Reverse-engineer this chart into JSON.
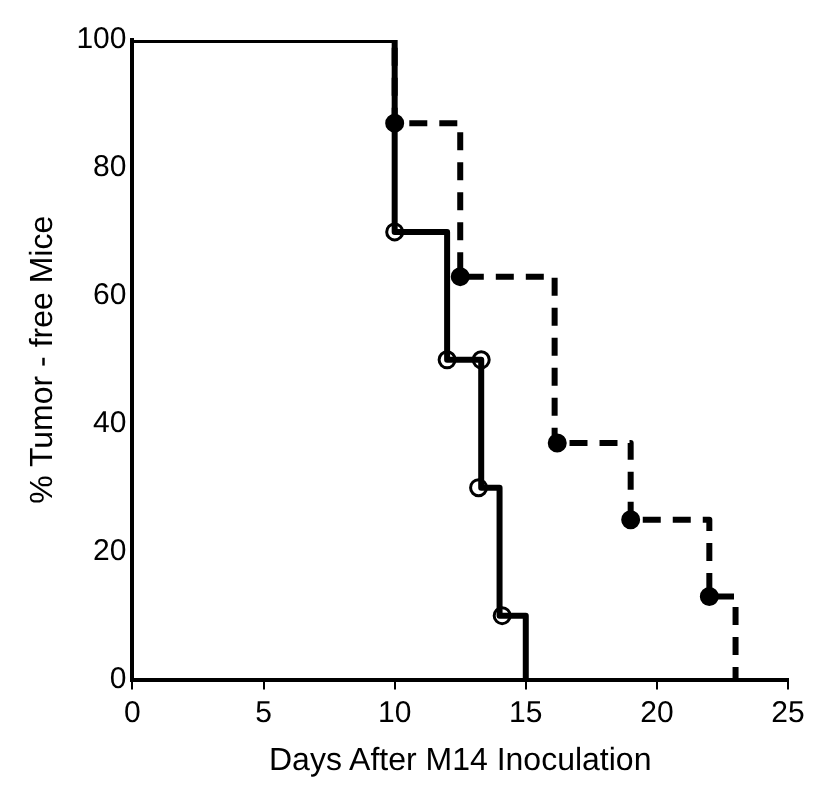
{
  "chart_data": {
    "type": "step",
    "xlabel": "Days After M14 Inoculation",
    "ylabel": "% Tumor - free Mice",
    "xlim": [
      0,
      25
    ],
    "xticks": [
      0,
      5,
      10,
      15,
      20,
      25
    ],
    "ylim": [
      0,
      100
    ],
    "yticks": [
      0,
      20,
      40,
      60,
      80,
      100
    ],
    "grid": false,
    "legend": false,
    "series": [
      {
        "color": "#000000",
        "line_style": "solid",
        "marker": "none",
        "x": [
          0,
          10,
          12,
          13.3,
          14,
          15
        ],
        "values": [
          100,
          70,
          50,
          30,
          10,
          0
        ]
      },
      {
        "color": "#000000",
        "line_style": "dashed",
        "marker": "none",
        "x": [
          0,
          10,
          12.5,
          16.1,
          19,
          22,
          23
        ],
        "values": [
          100,
          87,
          63,
          37,
          25,
          13,
          0
        ]
      },
      {
        "type": "scatter",
        "color": "#ffffff",
        "marker": "circle",
        "x": [
          10,
          12,
          13.3,
          13.2,
          14.1
        ],
        "values": [
          70,
          50,
          50,
          30,
          10
        ]
      },
      {
        "type": "scatter",
        "color": "#000000",
        "marker": "circle",
        "x": [
          10,
          12.5,
          16.2,
          19,
          22
        ],
        "values": [
          87,
          63,
          37,
          25,
          13
        ]
      }
    ]
  }
}
